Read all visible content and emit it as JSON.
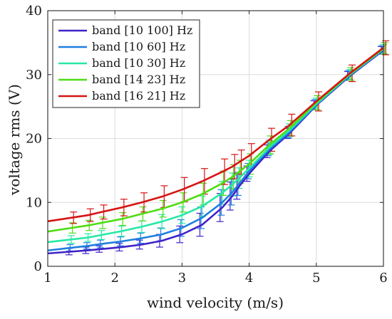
{
  "chart_data": {
    "type": "line",
    "xlabel": "wind velocity (m/s)",
    "ylabel": "voltage rms (V)",
    "xlim": [
      1,
      6
    ],
    "ylim": [
      0,
      40
    ],
    "xticks": [
      1,
      2,
      3,
      4,
      5,
      6
    ],
    "yticks": [
      0,
      10,
      20,
      30,
      40
    ],
    "grid": true,
    "legend_position": "top-left",
    "error_bars": true,
    "x": [
      1.35,
      1.6,
      1.8,
      2.1,
      2.4,
      2.7,
      3.0,
      3.3,
      3.6,
      3.75,
      3.85,
      4.0,
      4.3,
      4.6,
      5.0,
      5.5,
      6.0
    ],
    "series": [
      {
        "name": "band [10 100] Hz",
        "color": "#3f22c9",
        "values": [
          2.3,
          2.5,
          2.7,
          3.0,
          3.4,
          4.0,
          5.0,
          6.5,
          9.2,
          11.0,
          12.5,
          14.5,
          18.0,
          20.8,
          25.2,
          29.8,
          33.8
        ],
        "errors": [
          0.5,
          0.5,
          0.5,
          0.6,
          0.7,
          1.0,
          1.3,
          1.8,
          2.2,
          2.2,
          2.0,
          1.2,
          1.0,
          0.8,
          0.7,
          0.7,
          0.6
        ]
      },
      {
        "name": "band [10 60] Hz",
        "color": "#1e7fe0",
        "values": [
          2.9,
          3.2,
          3.5,
          3.9,
          4.4,
          5.0,
          6.0,
          7.6,
          10.0,
          11.6,
          12.9,
          14.9,
          18.3,
          21.0,
          25.3,
          29.9,
          33.9
        ],
        "errors": [
          0.5,
          0.5,
          0.6,
          0.7,
          0.8,
          1.0,
          1.3,
          1.7,
          2.0,
          2.0,
          1.8,
          1.2,
          1.0,
          0.9,
          0.8,
          0.7,
          0.6
        ]
      },
      {
        "name": "band [10 30] Hz",
        "color": "#26e8a6",
        "values": [
          4.2,
          4.5,
          4.9,
          5.5,
          6.2,
          7.0,
          8.0,
          9.4,
          11.5,
          12.8,
          13.8,
          15.3,
          18.6,
          21.3,
          25.4,
          30.0,
          34.0
        ],
        "errors": [
          0.6,
          0.6,
          0.7,
          0.8,
          0.9,
          1.1,
          1.3,
          1.6,
          1.8,
          1.8,
          1.6,
          1.3,
          1.1,
          1.0,
          0.9,
          0.8,
          0.7
        ]
      },
      {
        "name": "band [14 23] Hz",
        "color": "#4fdc12",
        "values": [
          6.0,
          6.4,
          6.8,
          7.4,
          8.2,
          9.0,
          10.0,
          11.3,
          13.0,
          14.0,
          14.8,
          16.0,
          19.0,
          21.6,
          25.6,
          30.1,
          34.1
        ],
        "errors": [
          0.8,
          0.8,
          0.9,
          1.0,
          1.1,
          1.3,
          1.5,
          1.7,
          1.9,
          1.9,
          1.8,
          1.6,
          1.4,
          1.2,
          1.1,
          1.0,
          0.9
        ]
      },
      {
        "name": "band [16 21] Hz",
        "color": "#d61414",
        "values": [
          7.6,
          8.0,
          8.5,
          9.2,
          10.0,
          10.9,
          12.0,
          13.3,
          14.8,
          15.6,
          16.3,
          17.3,
          19.8,
          22.1,
          25.8,
          30.2,
          34.2
        ],
        "errors": [
          0.9,
          1.0,
          1.1,
          1.3,
          1.5,
          1.7,
          1.9,
          2.0,
          2.0,
          1.9,
          1.9,
          1.9,
          1.8,
          1.7,
          1.5,
          1.3,
          1.1
        ]
      }
    ]
  }
}
